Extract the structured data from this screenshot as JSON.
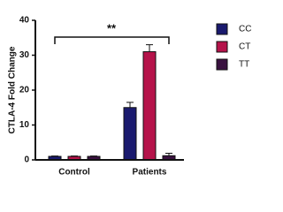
{
  "chart_data": {
    "type": "bar",
    "y_label": "CTLA-4 Fold Change",
    "categories": [
      "Control",
      "Patients"
    ],
    "series": [
      {
        "name": "CC",
        "color": "#1a1a6e",
        "values": [
          1,
          15
        ],
        "errors": [
          0.1,
          1.5
        ]
      },
      {
        "name": "CT",
        "color": "#b5134a",
        "values": [
          1,
          31
        ],
        "errors": [
          0.1,
          2
        ]
      },
      {
        "name": "TT",
        "color": "#3a1240",
        "values": [
          1,
          1.2
        ],
        "errors": [
          0.1,
          0.7
        ]
      }
    ],
    "ylim": [
      0,
      40
    ],
    "yticks": [
      0,
      10,
      20,
      30,
      40
    ],
    "annotation": "**"
  }
}
